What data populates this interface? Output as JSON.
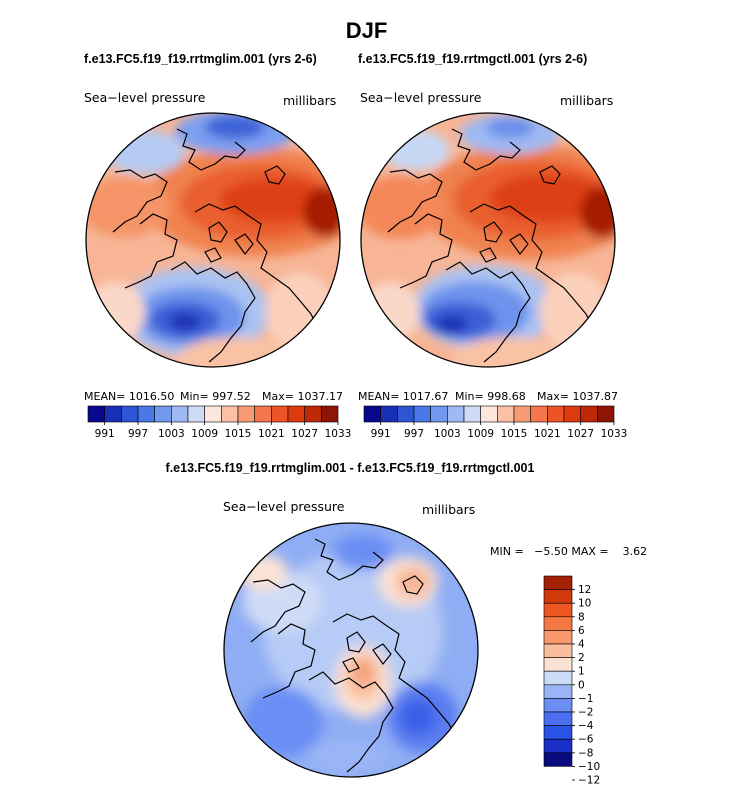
{
  "figure_title": "DJF",
  "panels": [
    {
      "title": "f.e13.FC5.f19_f19.rrtmglim.001 (yrs 2-6)",
      "left_label": "Sea−level pressure",
      "right_label": "millibars",
      "mean_text": "MEAN= 1016.50",
      "min_text": "Min= 997.52",
      "max_text": "Max= 1037.17"
    },
    {
      "title": "f.e13.FC5.f19_f19.rrtmgctl.001 (yrs 2-6)",
      "left_label": "Sea−level pressure",
      "right_label": "millibars",
      "mean_text": "MEAN= 1017.67",
      "min_text": "Min= 998.68",
      "max_text": "Max= 1037.87"
    },
    {
      "title": "f.e13.FC5.f19_f19.rrtmglim.001 - f.e13.FC5.f19_f19.rrtmgctl.001",
      "left_label": "Sea−level pressure",
      "right_label": "millibars",
      "minmax_text": "MIN =   −5.50 MAX =    3.62"
    }
  ],
  "colors": {
    "abs_scale": [
      "#08088e",
      "#1a30b4",
      "#2d55d4",
      "#4a78e6",
      "#7199ee",
      "#9fbaf2",
      "#cfdcf5",
      "#fde6dc",
      "#fbc1a6",
      "#f89a74",
      "#f3764c",
      "#ec5428",
      "#de3a10",
      "#bf2806",
      "#8e1405"
    ],
    "diff_scale": [
      "#0a0a80",
      "#1a2ec8",
      "#2a52e6",
      "#4b6ff0",
      "#6b8ef4",
      "#9ab5f6",
      "#cddcf7",
      "#fbe2d4",
      "#f9be9e",
      "#f7996c",
      "#f47844",
      "#ee5620",
      "#d23a0c",
      "#a52005"
    ]
  },
  "chart_data": [
    {
      "type": "heatmap",
      "projection": "polar-stereographic",
      "title": "f.e13.FC5.f19_f19.rrtmglim.001 (yrs 2-6)",
      "variable": "Sea−level pressure",
      "units": "millibars",
      "mean": 1016.5,
      "min": 997.52,
      "max": 1037.17,
      "colorbar_ticks": [
        "991",
        "997",
        "1003",
        "1009",
        "1015",
        "1021",
        "1027",
        "1033"
      ]
    },
    {
      "type": "heatmap",
      "projection": "polar-stereographic",
      "title": "f.e13.FC5.f19_f19.rrtmgctl.001 (yrs 2-6)",
      "variable": "Sea−level pressure",
      "units": "millibars",
      "mean": 1017.67,
      "min": 998.68,
      "max": 1037.87,
      "colorbar_ticks": [
        "991",
        "997",
        "1003",
        "1009",
        "1015",
        "1021",
        "1027",
        "1033"
      ]
    },
    {
      "type": "heatmap",
      "projection": "polar-stereographic",
      "title": "f.e13.FC5.f19_f19.rrtmglim.001 - f.e13.FC5.f19_f19.rrtmgctl.001",
      "variable": "Sea−level pressure",
      "units": "millibars",
      "min": -5.5,
      "max": 3.62,
      "colorbar_ticks": [
        "12",
        "10",
        "8",
        "6",
        "4",
        "2",
        "1",
        "0",
        "−1",
        "−2",
        "−4",
        "−6",
        "−8",
        "−10",
        "−12"
      ]
    }
  ]
}
